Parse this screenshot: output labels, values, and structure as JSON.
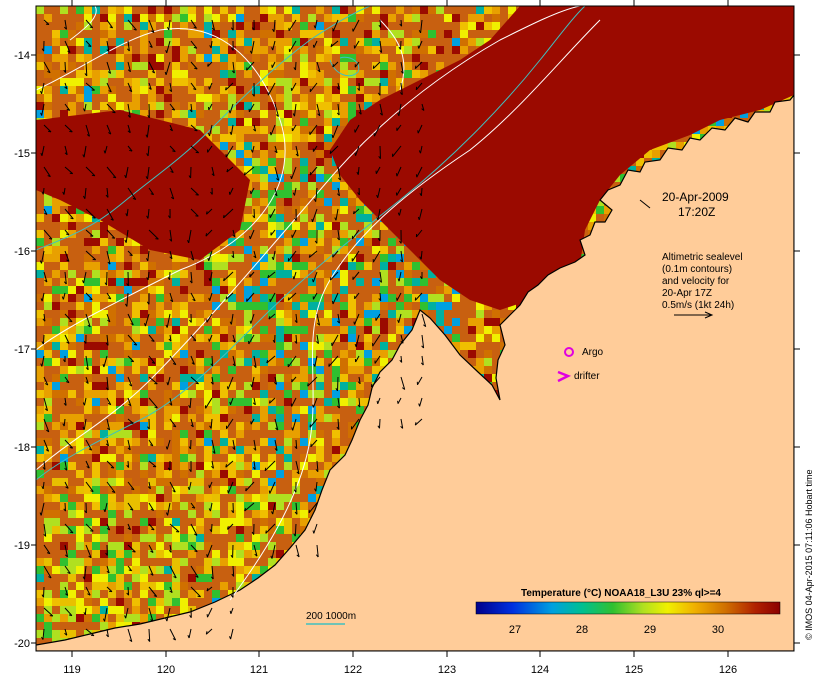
{
  "map": {
    "date_label": "20-Apr-2009",
    "time_label": "17:20Z",
    "legend_lines": [
      "Altimetric sealevel",
      "(0.1m contours)",
      "and velocity for",
      "20-Apr 17Z",
      "0.5m/s (1kt 24h)"
    ],
    "argo_label": "Argo",
    "drifter_label": "drifter",
    "bathy_label": "200  1000m",
    "colorbar_title": "Temperature (°C) NOAA18_L3U 23% ql>=4",
    "colorbar_ticks": [
      "27",
      "28",
      "29",
      "30"
    ],
    "credit": "© IMOS 04-Apr-2015 07:11:06 Hobart time",
    "x_ticks": [
      "119",
      "120",
      "121",
      "122",
      "123",
      "124",
      "125",
      "126"
    ],
    "y_ticks": [
      "-14",
      "-15",
      "-16",
      "-17",
      "-18",
      "-19",
      "-20"
    ],
    "colors": {
      "land": "#FFCC99",
      "argo": "#E000E0",
      "drifter": "#E000E0",
      "bathy_contour": "#40C0C0",
      "sealevel_contour": "#FFFFFF"
    }
  }
}
